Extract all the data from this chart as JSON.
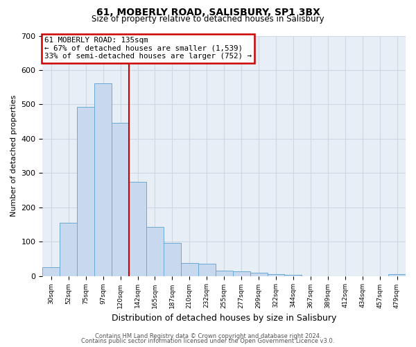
{
  "title": "61, MOBERLY ROAD, SALISBURY, SP1 3BX",
  "subtitle": "Size of property relative to detached houses in Salisbury",
  "xlabel": "Distribution of detached houses by size in Salisbury",
  "ylabel": "Number of detached properties",
  "bar_color": "#c8d9ef",
  "bar_edge_color": "#6aaad4",
  "bin_labels": [
    "30sqm",
    "52sqm",
    "75sqm",
    "97sqm",
    "120sqm",
    "142sqm",
    "165sqm",
    "187sqm",
    "210sqm",
    "232sqm",
    "255sqm",
    "277sqm",
    "299sqm",
    "322sqm",
    "344sqm",
    "367sqm",
    "389sqm",
    "412sqm",
    "434sqm",
    "457sqm",
    "479sqm"
  ],
  "bar_heights": [
    25,
    155,
    493,
    562,
    447,
    275,
    143,
    97,
    37,
    35,
    15,
    13,
    10,
    6,
    4,
    0,
    0,
    0,
    0,
    0,
    5
  ],
  "ylim": [
    0,
    700
  ],
  "yticks": [
    0,
    100,
    200,
    300,
    400,
    500,
    600,
    700
  ],
  "vline_color": "#cc0000",
  "annotation_title": "61 MOBERLY ROAD: 135sqm",
  "annotation_line1": "← 67% of detached houses are smaller (1,539)",
  "annotation_line2": "33% of semi-detached houses are larger (752) →",
  "annotation_box_color": "#cc0000",
  "grid_color": "#cdd8e5",
  "background_color": "#e8eef5",
  "footer1": "Contains HM Land Registry data © Crown copyright and database right 2024.",
  "footer2": "Contains public sector information licensed under the Open Government Licence v3.0."
}
